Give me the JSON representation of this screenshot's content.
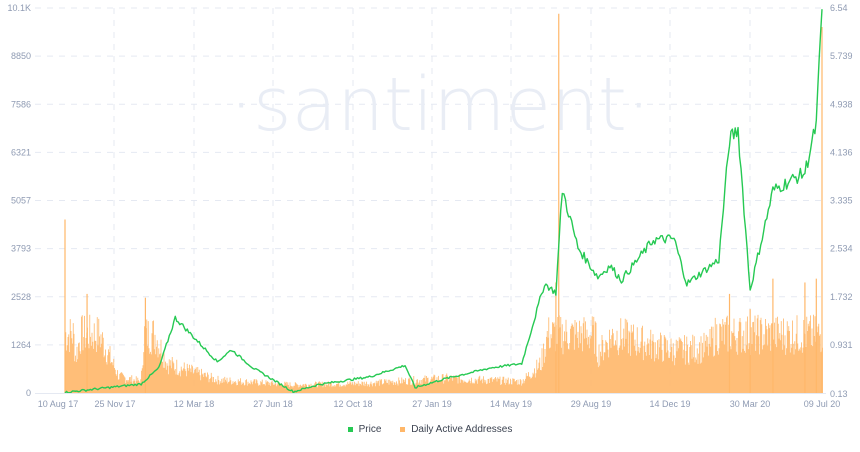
{
  "chart_data": {
    "type": "bar+line",
    "title": "",
    "watermark": "·santiment·",
    "x_labels": [
      "10 Aug 17",
      "25 Nov 17",
      "12 Mar 18",
      "27 Jun 18",
      "12 Oct 18",
      "27 Jan 19",
      "14 May 19",
      "29 Aug 19",
      "14 Dec 19",
      "30 Mar 20",
      "09 Jul 20"
    ],
    "left_axis": {
      "label": "Daily Active Addresses",
      "ticks": [
        "0",
        "1264",
        "2528",
        "3793",
        "5057",
        "6321",
        "7586",
        "8850",
        "10.1K"
      ],
      "ylim": [
        0,
        10100
      ]
    },
    "right_axis": {
      "label": "Price",
      "ticks": [
        "0.13",
        "0.931",
        "1.732",
        "2.534",
        "3.335",
        "4.136",
        "4.938",
        "5.739",
        "6.54"
      ],
      "ylim": [
        0.13,
        6.54
      ]
    },
    "grid": true,
    "legend_position": "bottom",
    "series": [
      {
        "name": "Price",
        "type": "line",
        "axis": "right",
        "color": "#26c953",
        "x": [
          "10 Aug 17",
          "25 Nov 17",
          "20 Dec 17",
          "12 Jan 18",
          "12 Mar 18",
          "01 Apr 18",
          "01 May 18",
          "27 Jun 18",
          "01 Aug 18",
          "12 Oct 18",
          "01 Dec 18",
          "15 Dec 18",
          "27 Jan 19",
          "01 Apr 19",
          "14 May 19",
          "15 Jun 19",
          "01 Jul 19",
          "10 Jul 19",
          "01 Aug 19",
          "29 Aug 19",
          "15 Sep 19",
          "01 Oct 19",
          "15 Nov 19",
          "14 Dec 19",
          "01 Jan 20",
          "15 Feb 20",
          "01 Mar 20",
          "13 Mar 20",
          "30 Mar 20",
          "01 May 20",
          "15 Jun 20",
          "01 Jul 20",
          "09 Jul 20"
        ],
        "values": [
          0.14,
          0.28,
          0.55,
          1.38,
          0.65,
          0.85,
          0.55,
          0.15,
          0.27,
          0.4,
          0.59,
          0.22,
          0.37,
          0.55,
          0.62,
          1.95,
          1.8,
          3.52,
          2.55,
          2.06,
          2.25,
          2.01,
          2.68,
          2.7,
          1.95,
          2.35,
          4.35,
          4.52,
          1.85,
          3.5,
          3.8,
          4.6,
          6.52
        ]
      },
      {
        "name": "Daily Active Addresses",
        "type": "bar",
        "axis": "left",
        "color": "#ffb769",
        "x": [
          "10 Aug 17",
          "25 Aug 17",
          "10 Sep 17",
          "25 Oct 17",
          "25 Nov 17",
          "01 Dec 17",
          "01 Jan 18",
          "12 Mar 18",
          "27 Jun 18",
          "12 Oct 18",
          "27 Jan 19",
          "14 May 19",
          "10 Jun 19",
          "01 Jul 19",
          "05 Jul 19",
          "29 Aug 19",
          "20 Sep 19",
          "14 Dec 19",
          "01 Feb 20",
          "01 Mar 20",
          "30 Mar 20",
          "01 May 20",
          "15 Jun 20",
          "01 Jul 20",
          "09 Jul 20"
        ],
        "values": [
          4550,
          1100,
          2600,
          500,
          350,
          2500,
          900,
          400,
          250,
          300,
          450,
          350,
          900,
          2900,
          9950,
          1200,
          1800,
          1300,
          1400,
          2600,
          2200,
          3000,
          2900,
          3000,
          9600
        ]
      }
    ]
  },
  "legend": {
    "items": [
      {
        "label": "Price",
        "color": "#26c953"
      },
      {
        "label": "Daily Active Addresses",
        "color": "#ffb769"
      }
    ]
  }
}
